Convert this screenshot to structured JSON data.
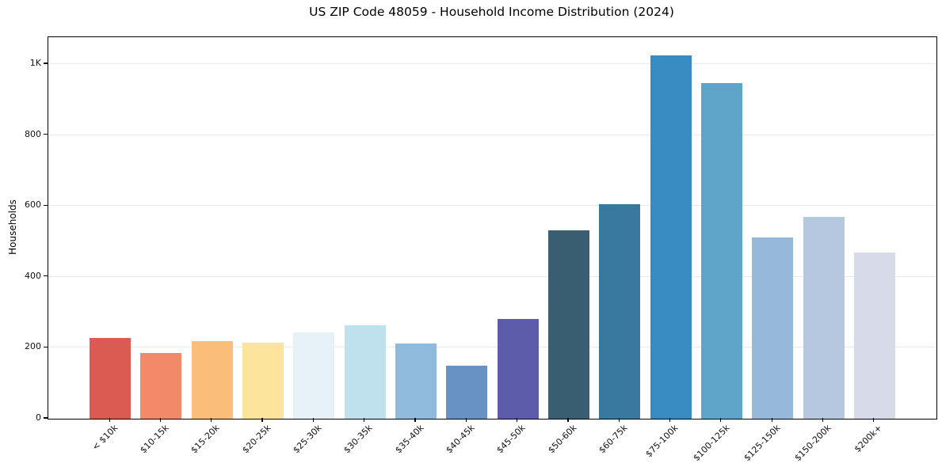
{
  "chart_data": {
    "type": "bar",
    "title": "US ZIP Code 48059 - Household Income Distribution (2024)",
    "xlabel": "",
    "ylabel": "Households",
    "categories": [
      "< $10k",
      "$10-15k",
      "$15-20k",
      "$20-25k",
      "$25-30k",
      "$30-35k",
      "$35-40k",
      "$40-45k",
      "$45-50k",
      "$50-60k",
      "$60-75k",
      "$75-100k",
      "$100-125k",
      "$125-150k",
      "$150-200k",
      "$200k+"
    ],
    "values": [
      228,
      185,
      219,
      214,
      243,
      264,
      212,
      150,
      281,
      532,
      604,
      1025,
      946,
      512,
      570,
      468
    ],
    "bar_colors": [
      "#d95b52",
      "#f28a6a",
      "#fabd7a",
      "#fce49d",
      "#e7f2f8",
      "#bfe1ed",
      "#8fbadb",
      "#6992c4",
      "#5c5caa",
      "#395e72",
      "#38789f",
      "#378cc1",
      "#5fa4c9",
      "#96b9d9",
      "#b6c8e0",
      "#d7dae8"
    ],
    "yticks": [
      {
        "value": 0,
        "label": "0"
      },
      {
        "value": 200,
        "label": "200"
      },
      {
        "value": 400,
        "label": "400"
      },
      {
        "value": 600,
        "label": "600"
      },
      {
        "value": 800,
        "label": "800"
      },
      {
        "value": 1000,
        "label": "1K"
      }
    ],
    "ylim": [
      0,
      1076
    ],
    "grid": "horizontal-only",
    "gridline_color": "#e9e9e9",
    "legend": "none",
    "plot_background": "#ffffff",
    "spine_color": "#000000",
    "xtick_rotation_deg": 45
  }
}
